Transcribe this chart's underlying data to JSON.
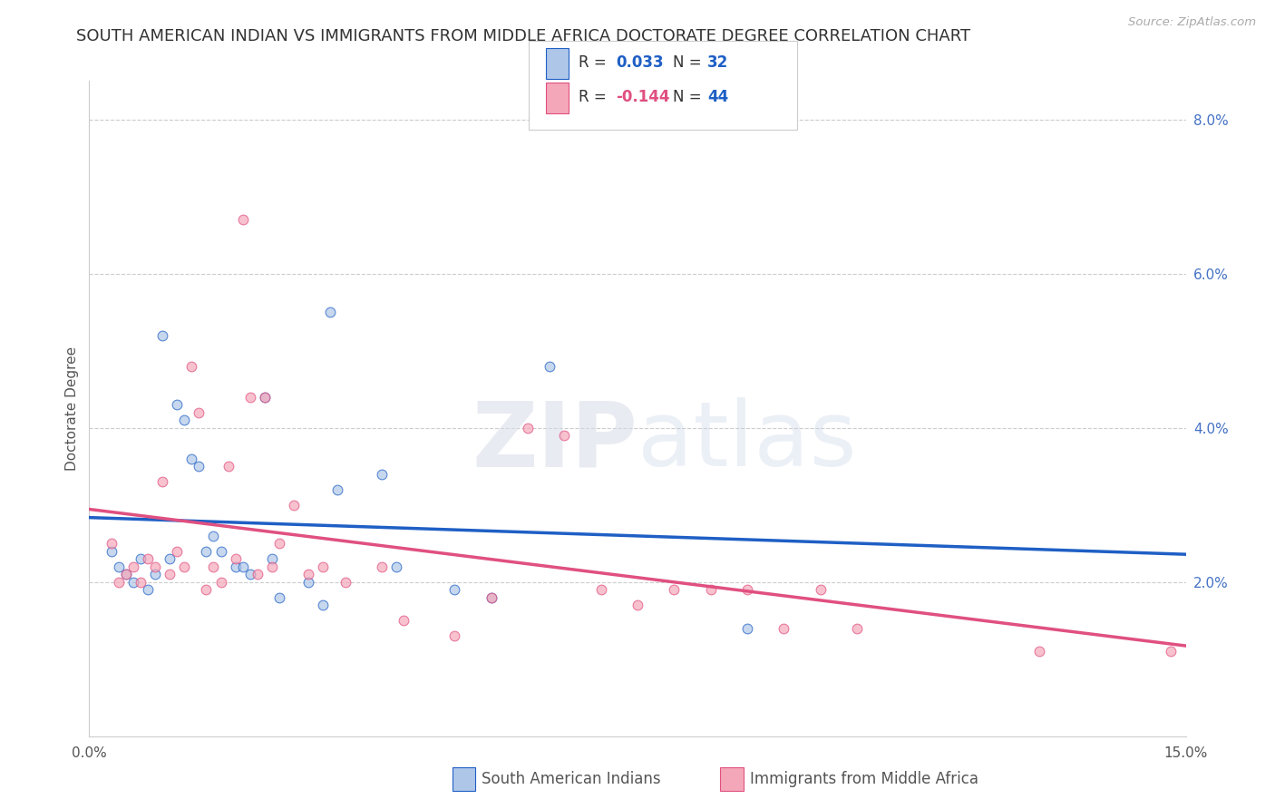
{
  "title": "SOUTH AMERICAN INDIAN VS IMMIGRANTS FROM MIDDLE AFRICA DOCTORATE DEGREE CORRELATION CHART",
  "source": "Source: ZipAtlas.com",
  "ylabel": "Doctorate Degree",
  "xlim": [
    0,
    0.15
  ],
  "ylim": [
    0,
    0.085
  ],
  "blue_R": "0.033",
  "blue_N": "32",
  "pink_R": "-0.144",
  "pink_N": "44",
  "blue_color": "#aec6e8",
  "pink_color": "#f4a7b9",
  "blue_line_color": "#1f5fc5",
  "pink_line_color": "#e05080",
  "blue_scatter": [
    [
      0.003,
      0.024
    ],
    [
      0.004,
      0.022
    ],
    [
      0.005,
      0.021
    ],
    [
      0.006,
      0.02
    ],
    [
      0.007,
      0.023
    ],
    [
      0.008,
      0.019
    ],
    [
      0.009,
      0.021
    ],
    [
      0.01,
      0.052
    ],
    [
      0.011,
      0.023
    ],
    [
      0.012,
      0.043
    ],
    [
      0.013,
      0.041
    ],
    [
      0.014,
      0.036
    ],
    [
      0.015,
      0.035
    ],
    [
      0.016,
      0.024
    ],
    [
      0.017,
      0.026
    ],
    [
      0.018,
      0.024
    ],
    [
      0.02,
      0.022
    ],
    [
      0.021,
      0.022
    ],
    [
      0.022,
      0.021
    ],
    [
      0.024,
      0.044
    ],
    [
      0.025,
      0.023
    ],
    [
      0.026,
      0.018
    ],
    [
      0.03,
      0.02
    ],
    [
      0.032,
      0.017
    ],
    [
      0.033,
      0.055
    ],
    [
      0.034,
      0.032
    ],
    [
      0.04,
      0.034
    ],
    [
      0.042,
      0.022
    ],
    [
      0.05,
      0.019
    ],
    [
      0.055,
      0.018
    ],
    [
      0.063,
      0.048
    ],
    [
      0.09,
      0.014
    ]
  ],
  "pink_scatter": [
    [
      0.003,
      0.025
    ],
    [
      0.004,
      0.02
    ],
    [
      0.005,
      0.021
    ],
    [
      0.006,
      0.022
    ],
    [
      0.007,
      0.02
    ],
    [
      0.008,
      0.023
    ],
    [
      0.009,
      0.022
    ],
    [
      0.01,
      0.033
    ],
    [
      0.011,
      0.021
    ],
    [
      0.012,
      0.024
    ],
    [
      0.013,
      0.022
    ],
    [
      0.014,
      0.048
    ],
    [
      0.015,
      0.042
    ],
    [
      0.016,
      0.019
    ],
    [
      0.017,
      0.022
    ],
    [
      0.018,
      0.02
    ],
    [
      0.019,
      0.035
    ],
    [
      0.02,
      0.023
    ],
    [
      0.021,
      0.067
    ],
    [
      0.022,
      0.044
    ],
    [
      0.023,
      0.021
    ],
    [
      0.024,
      0.044
    ],
    [
      0.025,
      0.022
    ],
    [
      0.026,
      0.025
    ],
    [
      0.028,
      0.03
    ],
    [
      0.03,
      0.021
    ],
    [
      0.032,
      0.022
    ],
    [
      0.035,
      0.02
    ],
    [
      0.04,
      0.022
    ],
    [
      0.043,
      0.015
    ],
    [
      0.05,
      0.013
    ],
    [
      0.055,
      0.018
    ],
    [
      0.06,
      0.04
    ],
    [
      0.065,
      0.039
    ],
    [
      0.07,
      0.019
    ],
    [
      0.075,
      0.017
    ],
    [
      0.08,
      0.019
    ],
    [
      0.085,
      0.019
    ],
    [
      0.09,
      0.019
    ],
    [
      0.095,
      0.014
    ],
    [
      0.1,
      0.019
    ],
    [
      0.105,
      0.014
    ],
    [
      0.13,
      0.011
    ],
    [
      0.148,
      0.011
    ]
  ],
  "background_color": "#ffffff",
  "grid_color": "#cccccc",
  "title_fontsize": 13,
  "label_fontsize": 11,
  "tick_fontsize": 11,
  "legend_fontsize": 12,
  "marker_size": 60
}
